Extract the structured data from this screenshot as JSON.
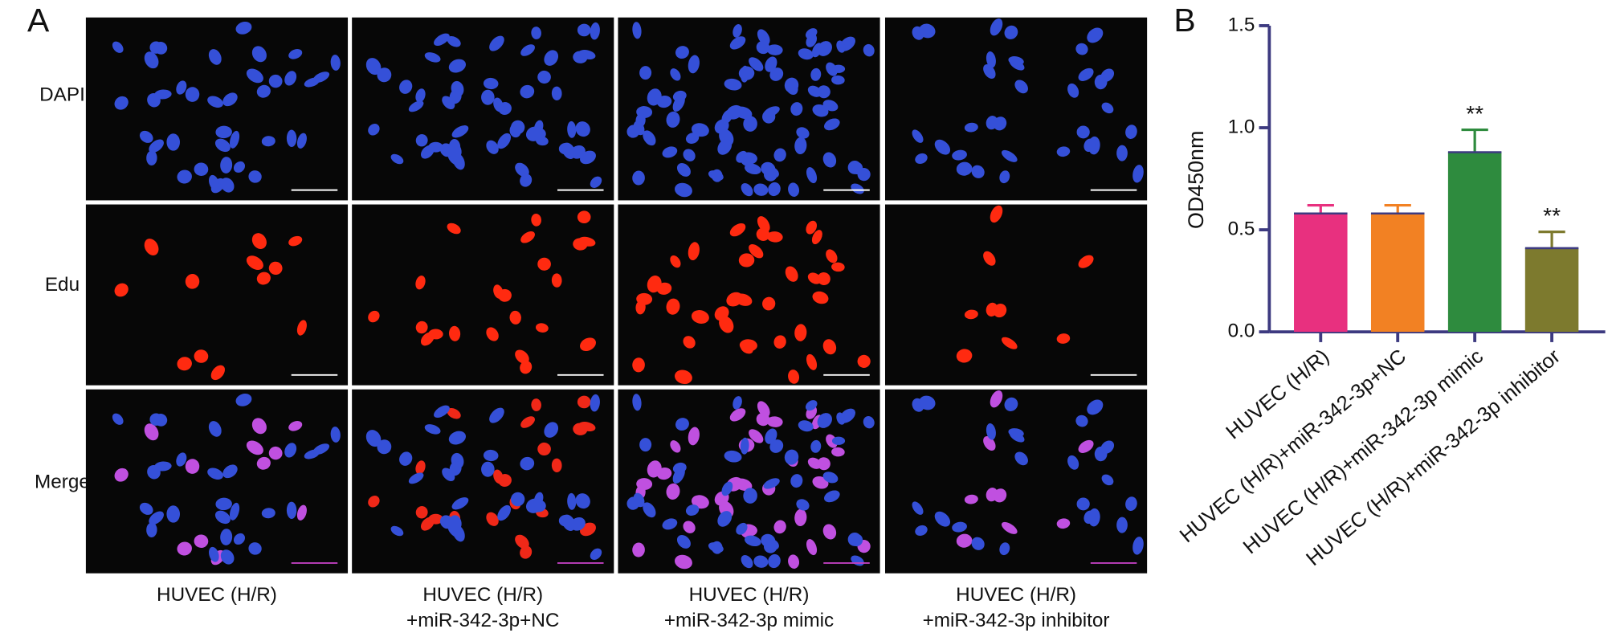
{
  "panel_a": {
    "label": "A",
    "rows": [
      "DAPI",
      "Edu",
      "Merge"
    ],
    "columns": [
      [
        "HUVEC (H/R)"
      ],
      [
        "HUVEC (H/R)",
        "+miR-342-3p+NC"
      ],
      [
        "HUVEC (H/R)",
        "+miR-342-3p mimic"
      ],
      [
        "HUVEC (H/R)",
        "+miR-342-3p inhibitor"
      ]
    ]
  },
  "chart_data": {
    "type": "bar",
    "panel_label": "B",
    "y_label": "OD450nm",
    "categories": [
      "HUVEC (H/R)",
      "HUVEC (H/R)+miR-342-3p+NC",
      "HUVEC (H/R)+miR-342-3p mimic",
      "HUVEC (H/R)+miR-342-3p inhibitor"
    ],
    "values": [
      0.58,
      0.58,
      0.88,
      0.41
    ],
    "errors": [
      0.04,
      0.04,
      0.11,
      0.08
    ],
    "significance": [
      null,
      null,
      "**",
      "**"
    ],
    "colors": [
      "#e8307f",
      "#f28123",
      "#2e8b3e",
      "#7d7a2e"
    ],
    "ylim": [
      0,
      1.5
    ],
    "yticks": [
      {
        "value": 0,
        "label": "0.0"
      },
      {
        "value": 0.5,
        "label": "0.5"
      },
      {
        "value": 1,
        "label": "1.0"
      },
      {
        "value": 1.5,
        "label": "1.5"
      }
    ]
  }
}
